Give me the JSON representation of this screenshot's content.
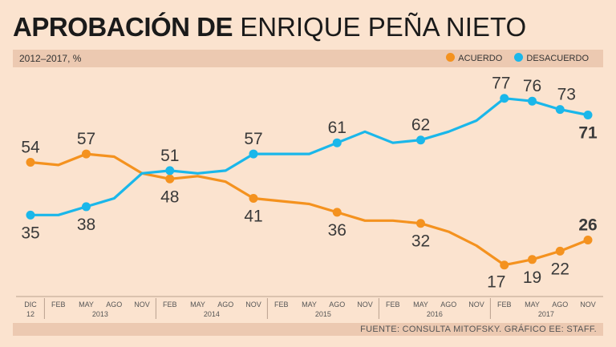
{
  "title": {
    "bold": "APROBACIÓN DE",
    "light": "ENRIQUE PEÑA NIETO"
  },
  "subtitle": "2012–2017, %",
  "legend": [
    {
      "label": "ACUERDO",
      "color": "#f4921f"
    },
    {
      "label": "DESACUERDO",
      "color": "#1ab7ea"
    }
  ],
  "footer": "FUENTE: CONSULTA MITOFSKY. GRÁFICO EE: STAFF.",
  "chart_data": {
    "type": "line",
    "title": "APROBACIÓN DE ENRIQUE PEÑA NIETO",
    "subtitle": "2012–2017, %",
    "ylim": [
      10,
      85
    ],
    "grid": false,
    "legend_position": "top-right",
    "x_ticks": [
      {
        "i": 0,
        "label": "DIC",
        "sub": "12"
      },
      {
        "i": 1,
        "label": "FEB"
      },
      {
        "i": 2,
        "label": "MAY"
      },
      {
        "i": 3,
        "label": "AGO"
      },
      {
        "i": 4,
        "label": "NOV"
      },
      {
        "i": 5,
        "label": "FEB"
      },
      {
        "i": 6,
        "label": "MAY"
      },
      {
        "i": 7,
        "label": "AGO"
      },
      {
        "i": 8,
        "label": "NOV"
      },
      {
        "i": 9,
        "label": "FEB"
      },
      {
        "i": 10,
        "label": "MAY"
      },
      {
        "i": 11,
        "label": "AGO"
      },
      {
        "i": 12,
        "label": "NOV"
      },
      {
        "i": 13,
        "label": "FEB"
      },
      {
        "i": 14,
        "label": "MAY"
      },
      {
        "i": 15,
        "label": "AGO"
      },
      {
        "i": 16,
        "label": "NOV"
      },
      {
        "i": 17,
        "label": "FEB"
      },
      {
        "i": 18,
        "label": "MAY"
      },
      {
        "i": 19,
        "label": "AGO"
      },
      {
        "i": 20,
        "label": "NOV"
      }
    ],
    "year_groups": [
      {
        "label": "2013",
        "from": 1,
        "to": 4
      },
      {
        "label": "2014",
        "from": 5,
        "to": 8
      },
      {
        "label": "2015",
        "from": 9,
        "to": 12
      },
      {
        "label": "2016",
        "from": 13,
        "to": 16
      },
      {
        "label": "2017",
        "from": 17,
        "to": 20
      }
    ],
    "series": [
      {
        "name": "ACUERDO",
        "color": "#f4921f",
        "points": [
          [
            0,
            54
          ],
          [
            1,
            53
          ],
          [
            2,
            57
          ],
          [
            3,
            56
          ],
          [
            4,
            50
          ],
          [
            5,
            48
          ],
          [
            6,
            49
          ],
          [
            7,
            47
          ],
          [
            8,
            41
          ],
          [
            9,
            40
          ],
          [
            10,
            39
          ],
          [
            11,
            36
          ],
          [
            12,
            33
          ],
          [
            13,
            33
          ],
          [
            14,
            32
          ],
          [
            15,
            29
          ],
          [
            16,
            24
          ],
          [
            17,
            17
          ],
          [
            18,
            19
          ],
          [
            19,
            22
          ],
          [
            20,
            26
          ]
        ],
        "labels": [
          {
            "i": 0,
            "text": "54",
            "pos": "above"
          },
          {
            "i": 2,
            "text": "57",
            "pos": "above"
          },
          {
            "i": 5,
            "text": "48",
            "pos": "below"
          },
          {
            "i": 8,
            "text": "41",
            "pos": "below"
          },
          {
            "i": 11,
            "text": "36",
            "pos": "below"
          },
          {
            "i": 14,
            "text": "32",
            "pos": "below"
          },
          {
            "i": 17,
            "text": "17",
            "pos": "below-left"
          },
          {
            "i": 18,
            "text": "19",
            "pos": "below"
          },
          {
            "i": 19,
            "text": "22",
            "pos": "below"
          },
          {
            "i": 20,
            "text": "26",
            "pos": "above",
            "bold": true
          }
        ]
      },
      {
        "name": "DESACUERDO",
        "color": "#1ab7ea",
        "points": [
          [
            0,
            35
          ],
          [
            1,
            35
          ],
          [
            2,
            38
          ],
          [
            3,
            41
          ],
          [
            4,
            50
          ],
          [
            5,
            51
          ],
          [
            6,
            50
          ],
          [
            7,
            51
          ],
          [
            8,
            57
          ],
          [
            9,
            57
          ],
          [
            10,
            57
          ],
          [
            11,
            61
          ],
          [
            12,
            65
          ],
          [
            13,
            61
          ],
          [
            14,
            62
          ],
          [
            15,
            65
          ],
          [
            16,
            69
          ],
          [
            17,
            77
          ],
          [
            18,
            76
          ],
          [
            19,
            73
          ],
          [
            20,
            71
          ]
        ],
        "labels": [
          {
            "i": 0,
            "text": "35",
            "pos": "below"
          },
          {
            "i": 2,
            "text": "38",
            "pos": "below"
          },
          {
            "i": 5,
            "text": "51",
            "pos": "above"
          },
          {
            "i": 8,
            "text": "57",
            "pos": "above"
          },
          {
            "i": 11,
            "text": "61",
            "pos": "above"
          },
          {
            "i": 14,
            "text": "62",
            "pos": "above"
          },
          {
            "i": 17,
            "text": "77",
            "pos": "above-left"
          },
          {
            "i": 18,
            "text": "76",
            "pos": "above"
          },
          {
            "i": 19,
            "text": "73",
            "pos": "above-right"
          },
          {
            "i": 20,
            "text": "71",
            "pos": "below",
            "bold": true
          }
        ]
      }
    ]
  }
}
